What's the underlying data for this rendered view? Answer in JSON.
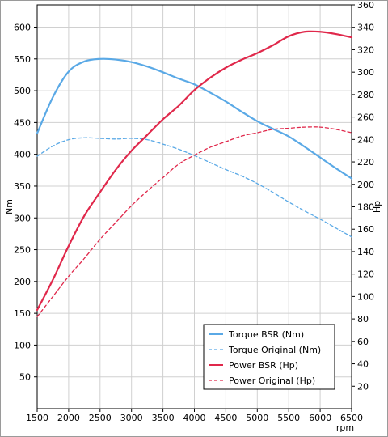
{
  "chart_data": {
    "type": "line",
    "xlabel": "rpm",
    "ylabel_left": "Nm",
    "ylabel_right": "Hp",
    "x_range": [
      1500,
      6500
    ],
    "y_left_range": [
      0,
      635
    ],
    "y_right_range": [
      0,
      360
    ],
    "x_ticks": [
      1500,
      2000,
      2500,
      3000,
      3500,
      4000,
      4500,
      5000,
      5500,
      6000,
      6500
    ],
    "y_left_ticks": [
      50,
      100,
      150,
      200,
      250,
      300,
      350,
      400,
      450,
      500,
      550,
      600
    ],
    "y_right_ticks": [
      20,
      40,
      60,
      80,
      100,
      120,
      140,
      160,
      180,
      200,
      220,
      240,
      260,
      280,
      300,
      320,
      340,
      360
    ],
    "grid": true,
    "legend_placement": "bottom-right",
    "colors": {
      "blue": "#5aa9e6",
      "red": "#e0284b"
    },
    "series": [
      {
        "name": "Torque BSR (Nm)",
        "axis": "left",
        "color": "#5aa9e6",
        "dash": "solid",
        "x": [
          1500,
          1750,
          2000,
          2250,
          2500,
          2750,
          3000,
          3250,
          3500,
          3750,
          4000,
          4250,
          4500,
          4750,
          5000,
          5250,
          5500,
          5750,
          6000,
          6250,
          6500
        ],
        "y": [
          433,
          490,
          530,
          546,
          550,
          549,
          545,
          538,
          529,
          519,
          510,
          497,
          483,
          467,
          452,
          440,
          428,
          412,
          395,
          378,
          362
        ]
      },
      {
        "name": "Torque Original (Nm)",
        "axis": "left",
        "color": "#5aa9e6",
        "dash": "dashed",
        "x": [
          1500,
          1750,
          2000,
          2250,
          2500,
          2750,
          3000,
          3250,
          3500,
          3750,
          4000,
          4250,
          4500,
          4750,
          5000,
          5250,
          5500,
          5750,
          6000,
          6250,
          6500
        ],
        "y": [
          397,
          413,
          423,
          426,
          425,
          424,
          425,
          423,
          416,
          408,
          398,
          387,
          376,
          366,
          354,
          340,
          325,
          311,
          298,
          284,
          270
        ]
      },
      {
        "name": "Power BSR (Hp)",
        "axis": "right",
        "color": "#e0284b",
        "dash": "solid",
        "x": [
          1500,
          1750,
          2000,
          2250,
          2500,
          2750,
          3000,
          3250,
          3500,
          3750,
          4000,
          4250,
          4500,
          4750,
          5000,
          5250,
          5500,
          5750,
          6000,
          6250,
          6500
        ],
        "y": [
          88,
          115,
          145,
          172,
          193,
          213,
          230,
          244,
          258,
          270,
          284,
          295,
          304,
          311,
          317,
          324,
          332,
          336,
          336,
          334,
          331
        ]
      },
      {
        "name": "Power Original (Hp)",
        "axis": "right",
        "color": "#e0284b",
        "dash": "dashed",
        "x": [
          1500,
          1750,
          2000,
          2250,
          2500,
          2750,
          3000,
          3250,
          3500,
          3750,
          4000,
          4250,
          4500,
          4750,
          5000,
          5250,
          5500,
          5750,
          6000,
          6250,
          6500
        ],
        "y": [
          82,
          100,
          118,
          134,
          151,
          166,
          181,
          194,
          206,
          218,
          226,
          233,
          238,
          243,
          246,
          249,
          250,
          251,
          251,
          249,
          246
        ]
      }
    ]
  }
}
